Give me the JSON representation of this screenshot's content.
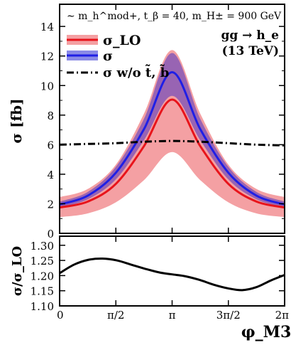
{
  "chart_data": [
    {
      "type": "line",
      "panel": "main",
      "ylabel": "σ [fb]",
      "ylim": [
        0,
        15.5
      ],
      "xlim": [
        0,
        6.2832
      ],
      "yticks": [
        "0",
        "2",
        "4",
        "6",
        "8",
        "10",
        "12",
        "14"
      ],
      "annotation_scenario": "∼ m_h^mod+, t_β = 40, m_H± = 900 GeV",
      "annotation_process": "gg → h_e",
      "annotation_energy": "(13 TeV)",
      "legend": {
        "lo": "σ_LO",
        "full": "σ",
        "no_stop": "σ w/o t̃, b̃",
        "position": "top-left"
      },
      "colors": {
        "lo_line": "#e8141b",
        "lo_band": "#f4a0a3",
        "full_line": "#1f1fe6",
        "full_band": "#8080dc",
        "overlap_band": "#7a50b8",
        "no_stop_line": "#000000"
      },
      "series": [
        {
          "name": "σ_LO",
          "style": "solid",
          "x": [
            0,
            0.785,
            1.571,
            2.356,
            3.1416,
            3.927,
            4.712,
            5.498,
            6.2832
          ],
          "values": [
            1.75,
            2.15,
            3.35,
            5.9,
            9.05,
            5.9,
            3.35,
            2.15,
            1.75
          ],
          "band_lower": [
            1.1,
            1.35,
            2.1,
            3.6,
            5.5,
            3.6,
            2.1,
            1.35,
            1.1
          ],
          "band_upper": [
            2.45,
            3.0,
            4.65,
            8.1,
            12.4,
            8.1,
            4.65,
            3.0,
            2.45
          ]
        },
        {
          "name": "σ",
          "style": "solid",
          "x": [
            0,
            0.785,
            1.571,
            2.356,
            3.1416,
            3.927,
            4.712,
            5.498,
            6.2832
          ],
          "values": [
            1.95,
            2.55,
            4.1,
            7.05,
            10.9,
            7.05,
            4.1,
            2.55,
            1.95
          ],
          "band_lower": [
            1.75,
            2.3,
            3.65,
            6.3,
            9.3,
            6.3,
            3.65,
            2.3,
            1.75
          ],
          "band_upper": [
            2.15,
            2.8,
            4.5,
            7.75,
            12.2,
            7.75,
            4.5,
            2.8,
            2.15
          ]
        },
        {
          "name": "σ w/o t̃, b̃",
          "style": "dash-dot",
          "x": [
            0,
            0.785,
            1.571,
            2.356,
            3.1416,
            3.927,
            4.712,
            5.498,
            6.2832
          ],
          "values": [
            6.0,
            6.05,
            6.1,
            6.2,
            6.25,
            6.2,
            6.1,
            6.0,
            5.95
          ]
        }
      ]
    },
    {
      "type": "line",
      "panel": "ratio",
      "xlabel": "φ_M3",
      "ylabel": "σ/σ_LO",
      "ylim": [
        1.1,
        1.33
      ],
      "xlim": [
        0,
        6.2832
      ],
      "yticks": [
        "1.10",
        "1.15",
        "1.20",
        "1.25",
        "1.30"
      ],
      "xticks": [
        "0",
        "π/2",
        "π",
        "3π/2",
        "2π"
      ],
      "series": [
        {
          "name": "σ/σ_LO",
          "x": [
            0,
            0.4,
            0.8,
            1.2,
            1.6,
            2.0,
            2.4,
            2.8,
            3.1416,
            3.5,
            3.9,
            4.3,
            4.7,
            5.1,
            5.5,
            5.9,
            6.2832
          ],
          "values": [
            1.208,
            1.236,
            1.252,
            1.256,
            1.25,
            1.236,
            1.222,
            1.21,
            1.204,
            1.198,
            1.186,
            1.17,
            1.158,
            1.152,
            1.162,
            1.184,
            1.202
          ]
        }
      ]
    }
  ]
}
